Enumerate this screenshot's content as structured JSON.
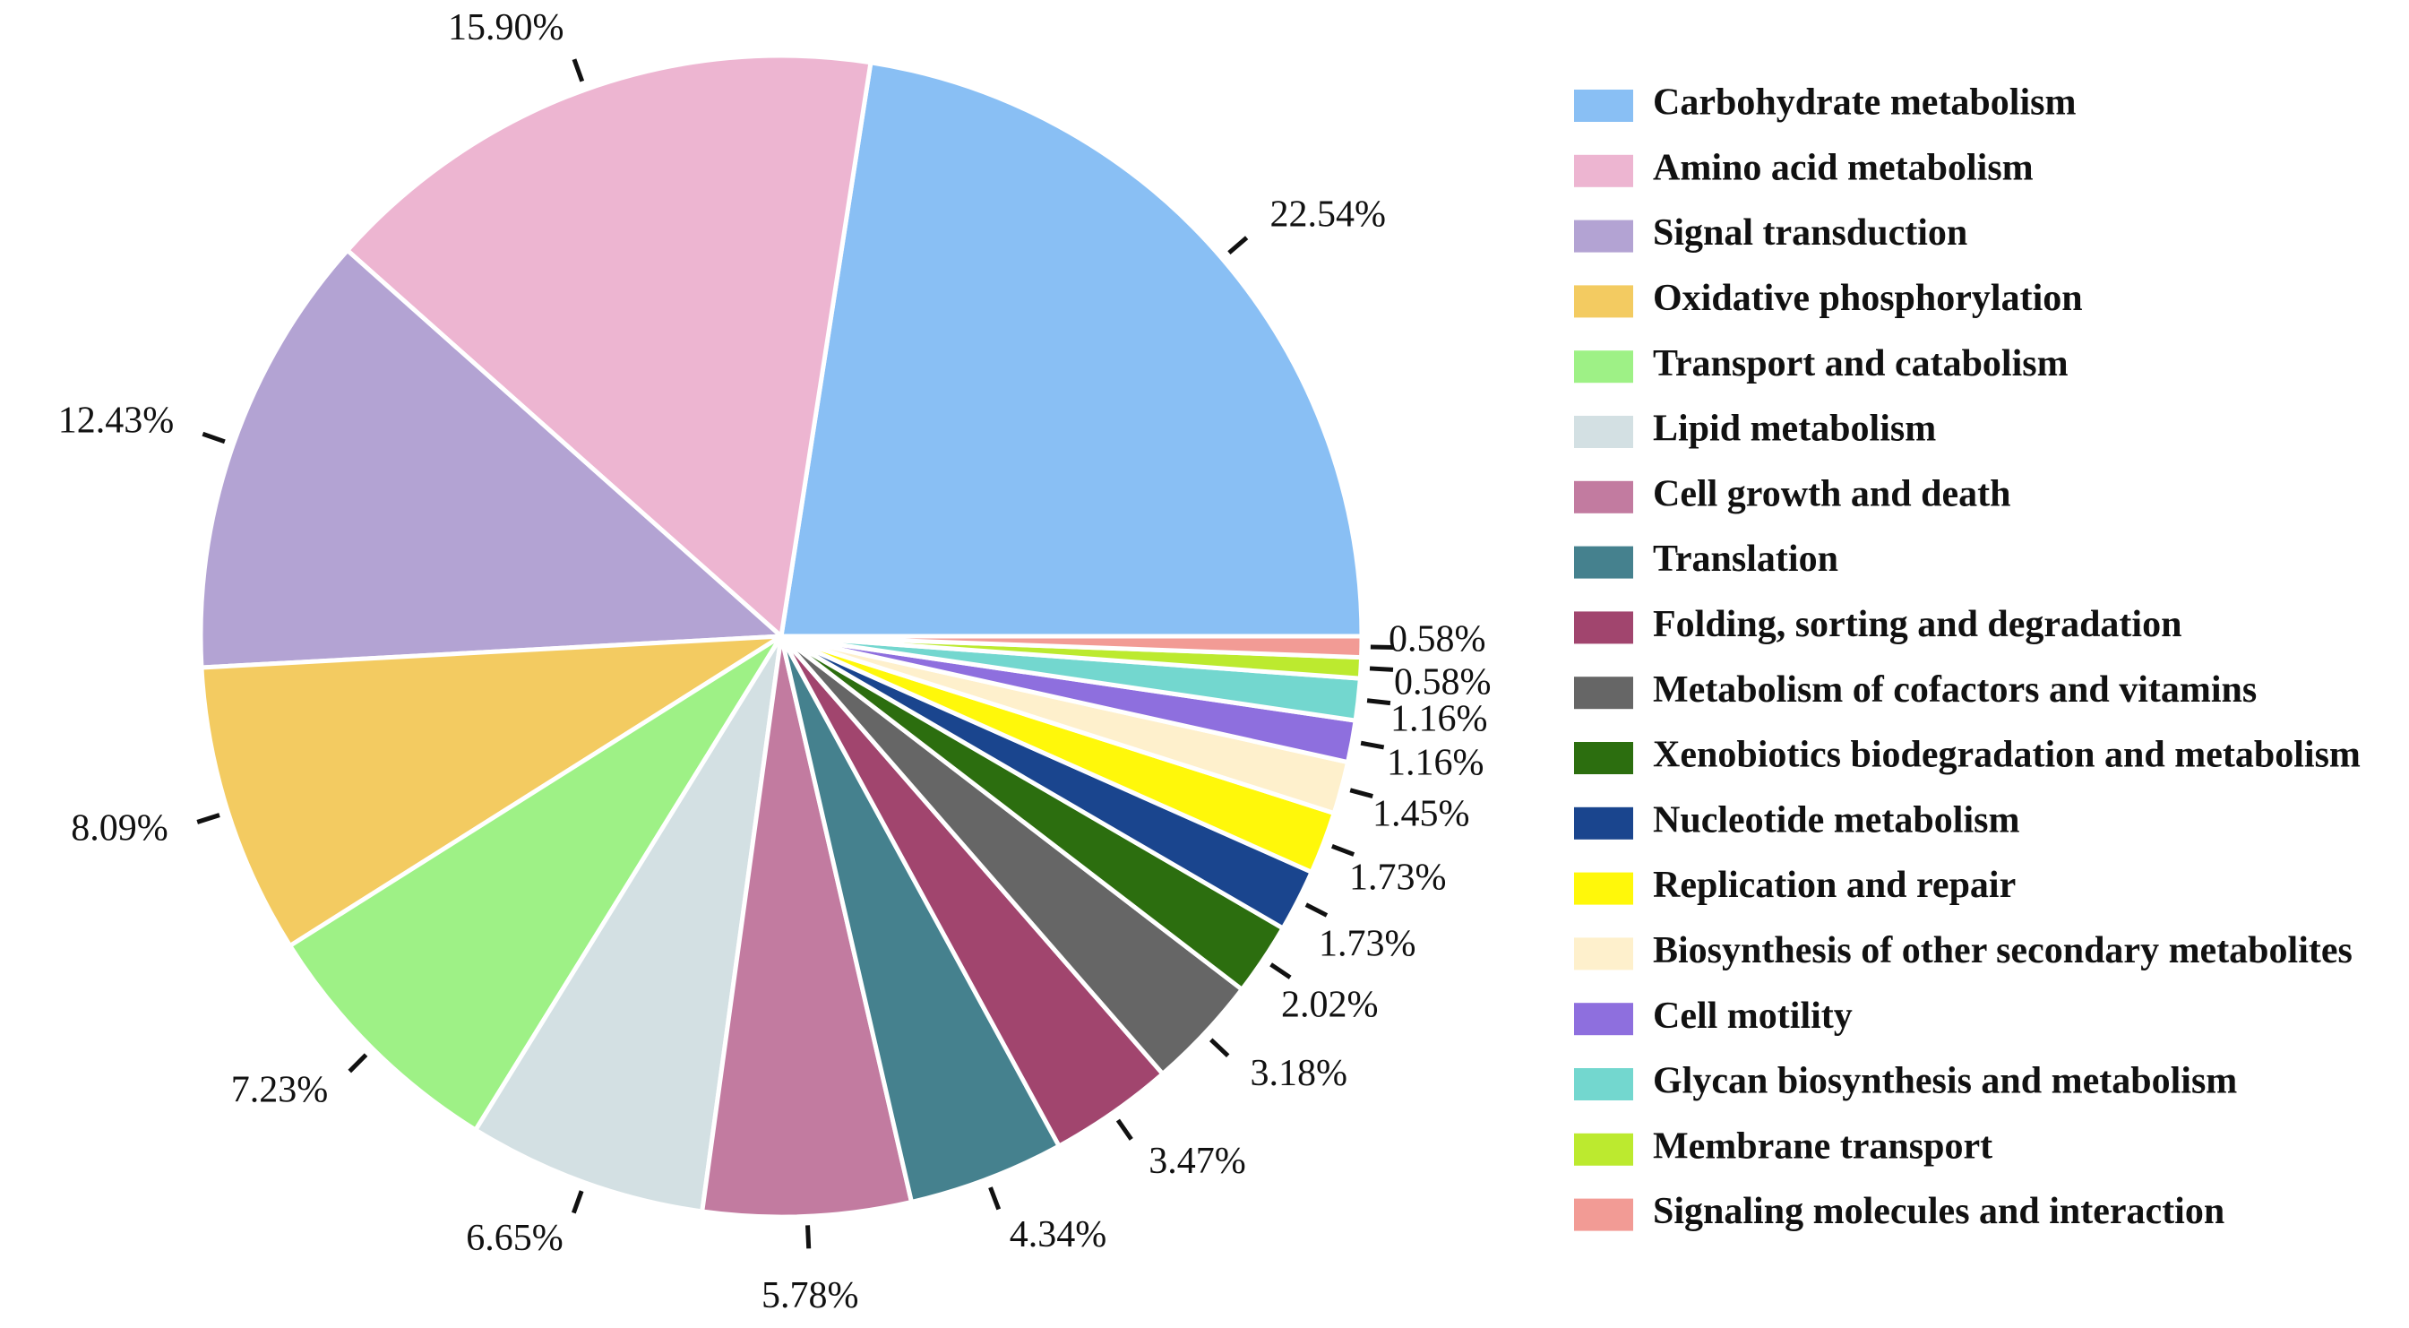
{
  "chart_data": {
    "type": "pie",
    "title": "",
    "start": "3 o'clock, counterclockwise",
    "legend_position": "right",
    "slices": [
      {
        "label": "Carbohydrate metabolism",
        "value": 22.54,
        "text": "22.54%",
        "color": "#89BFF4"
      },
      {
        "label": "Amino acid metabolism",
        "value": 15.9,
        "text": "15.90%",
        "color": "#EDB5D1"
      },
      {
        "label": "Signal transduction",
        "value": 12.43,
        "text": "12.43%",
        "color": "#B3A3D3"
      },
      {
        "label": "Oxidative phosphorylation",
        "value": 8.09,
        "text": "8.09%",
        "color": "#F3CB61"
      },
      {
        "label": "Transport and catabolism",
        "value": 7.23,
        "text": "7.23%",
        "color": "#9EF186"
      },
      {
        "label": "Lipid metabolism",
        "value": 6.65,
        "text": "6.65%",
        "color": "#D3E0E3"
      },
      {
        "label": "Cell growth and death",
        "value": 5.78,
        "text": "5.78%",
        "color": "#C27BA0"
      },
      {
        "label": "Translation",
        "value": 4.34,
        "text": "4.34%",
        "color": "#45818E"
      },
      {
        "label": "Folding, sorting and degradation",
        "value": 3.47,
        "text": "3.47%",
        "color": "#A1456E"
      },
      {
        "label": "Metabolism of cofactors and vitamins",
        "value": 3.18,
        "text": "3.18%",
        "color": "#666666"
      },
      {
        "label": "Xenobiotics biodegradation and metabolism",
        "value": 2.02,
        "text": "2.02%",
        "color": "#2C6E0F"
      },
      {
        "label": "Nucleotide metabolism",
        "value": 1.73,
        "text": "1.73%",
        "color": "#1A458E"
      },
      {
        "label": "Replication and repair",
        "value": 1.73,
        "text": "1.73%",
        "color": "#FFF80A"
      },
      {
        "label": "Biosynthesis of other secondary metabolites",
        "value": 1.45,
        "text": "1.45%",
        "color": "#FEF0CC"
      },
      {
        "label": "Cell motility",
        "value": 1.16,
        "text": "1.16%",
        "color": "#8E6FDE"
      },
      {
        "label": "Glycan biosynthesis and metabolism",
        "value": 1.16,
        "text": "1.16%",
        "color": "#73D7CF"
      },
      {
        "label": "Membrane transport",
        "value": 0.58,
        "text": "0.58%",
        "color": "#BCEA2F"
      },
      {
        "label": "Signaling molecules and interaction",
        "value": 0.58,
        "text": "0.58%",
        "color": "#F29B95"
      }
    ]
  }
}
